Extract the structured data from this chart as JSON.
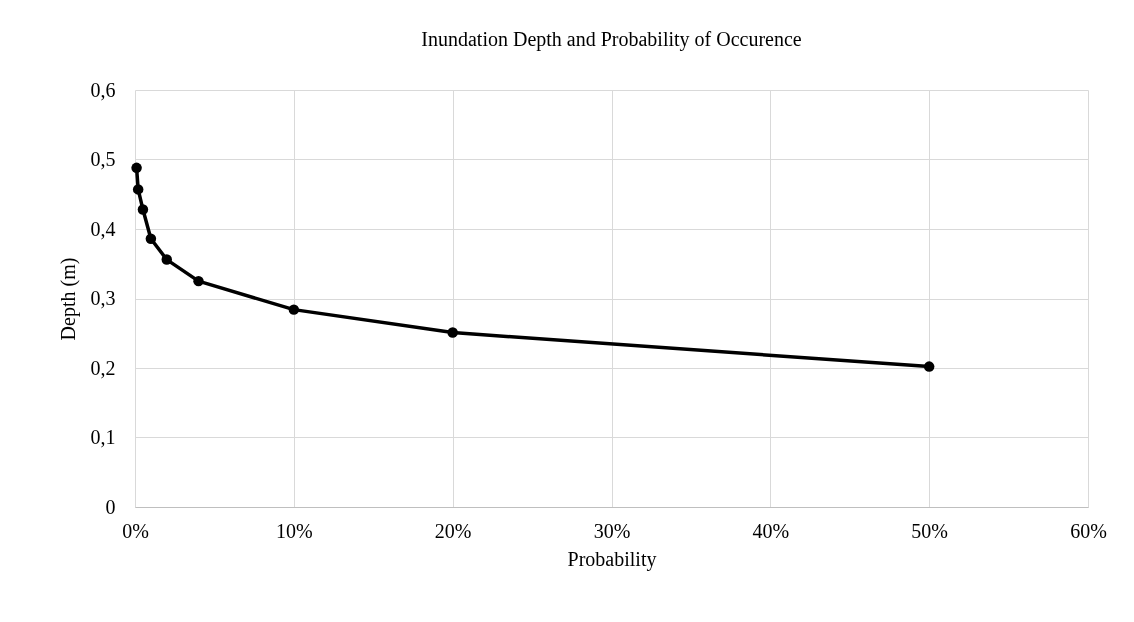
{
  "chart_data": {
    "type": "line",
    "title": "Inundation Depth and Probability of Occurence",
    "xlabel": "Probability",
    "ylabel": "Depth (m)",
    "x": [
      0.1,
      0.2,
      0.5,
      1,
      2,
      4,
      10,
      20,
      50
    ],
    "series": [
      {
        "color": "#000000",
        "values": [
          0.488,
          0.457,
          0.428,
          0.386,
          0.356,
          0.325,
          0.284,
          0.251,
          0.202
        ]
      }
    ],
    "xlim": [
      0,
      60
    ],
    "xticks": [
      {
        "value": 0,
        "label": "0%"
      },
      {
        "value": 10,
        "label": "10%"
      },
      {
        "value": 20,
        "label": "20%"
      },
      {
        "value": 30,
        "label": "30%"
      },
      {
        "value": 40,
        "label": "40%"
      },
      {
        "value": 50,
        "label": "50%"
      },
      {
        "value": 60,
        "label": "60%"
      }
    ],
    "ylim": [
      0,
      0.6
    ],
    "yticks": [
      0,
      {
        "value": 0.1,
        "label": "0,1"
      },
      {
        "value": 0.2,
        "label": "0,2"
      },
      {
        "value": 0.3,
        "label": "0,3"
      },
      {
        "value": 0.4,
        "label": "0,4"
      },
      {
        "value": 0.5,
        "label": "0,5"
      },
      {
        "value": 0.6,
        "label": "0,6"
      }
    ],
    "grid": true,
    "marker": "circle",
    "line_style": "solid"
  }
}
